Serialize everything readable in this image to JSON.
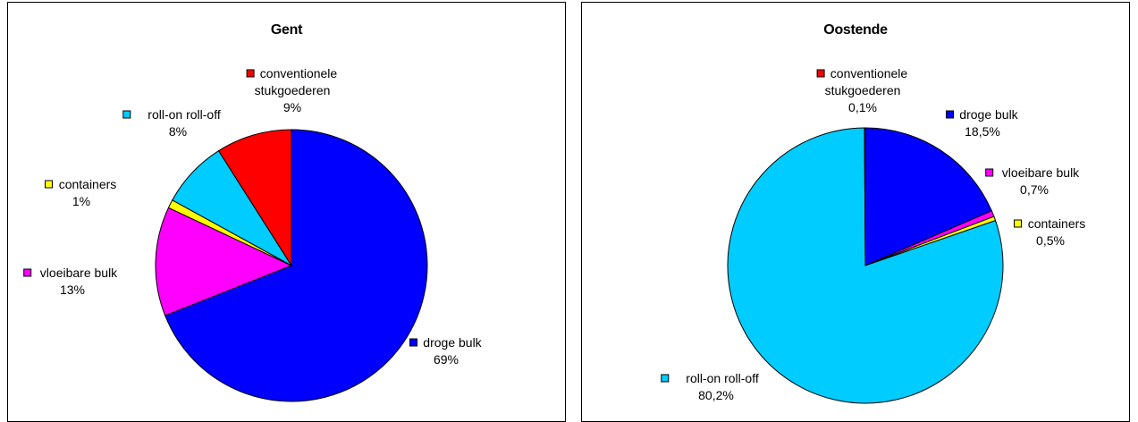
{
  "chart_data": [
    {
      "type": "pie",
      "title": "Gent",
      "slices": [
        {
          "label": "droge bulk",
          "value": 69,
          "display": "69%",
          "color": "#0000FF"
        },
        {
          "label": "vloeibare bulk",
          "value": 13,
          "display": "13%",
          "color": "#FF00FF"
        },
        {
          "label": "containers",
          "value": 1,
          "display": "1%",
          "color": "#FFFF00"
        },
        {
          "label": "roll-on roll-off",
          "value": 8,
          "display": "8%",
          "color": "#00CCFF"
        },
        {
          "label": "conventionele stukgoederen",
          "value": 9,
          "display": "9%",
          "color": "#FF0000"
        }
      ]
    },
    {
      "type": "pie",
      "title": "Oostende",
      "slices": [
        {
          "label": "droge bulk",
          "value": 18.5,
          "display": "18,5%",
          "color": "#0000FF"
        },
        {
          "label": "vloeibare bulk",
          "value": 0.7,
          "display": "0,7%",
          "color": "#FF00FF"
        },
        {
          "label": "containers",
          "value": 0.5,
          "display": "0,5%",
          "color": "#FFFF00"
        },
        {
          "label": "roll-on roll-off",
          "value": 80.2,
          "display": "80,2%",
          "color": "#00CCFF"
        },
        {
          "label": "conventionele stukgoederen",
          "value": 0.1,
          "display": "0,1%",
          "color": "#FF0000"
        }
      ]
    }
  ]
}
